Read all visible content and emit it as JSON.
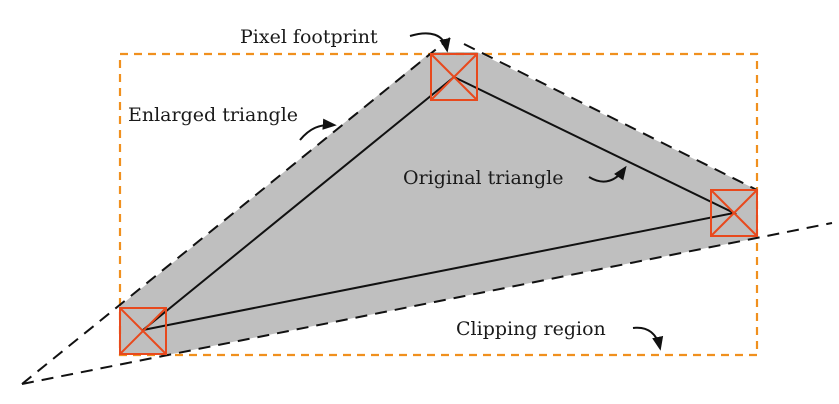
{
  "diagram": {
    "labels": {
      "pixel_footprint": "Pixel footprint",
      "enlarged_triangle": "Enlarged triangle",
      "original_triangle": "Original triangle",
      "clipping_region": "Clipping region"
    },
    "colors": {
      "clipping_region": "#f0901e",
      "pixel_footprint": "#e8491d",
      "enlarged_fill": "#bfbfbf",
      "edge": "#111111"
    }
  }
}
